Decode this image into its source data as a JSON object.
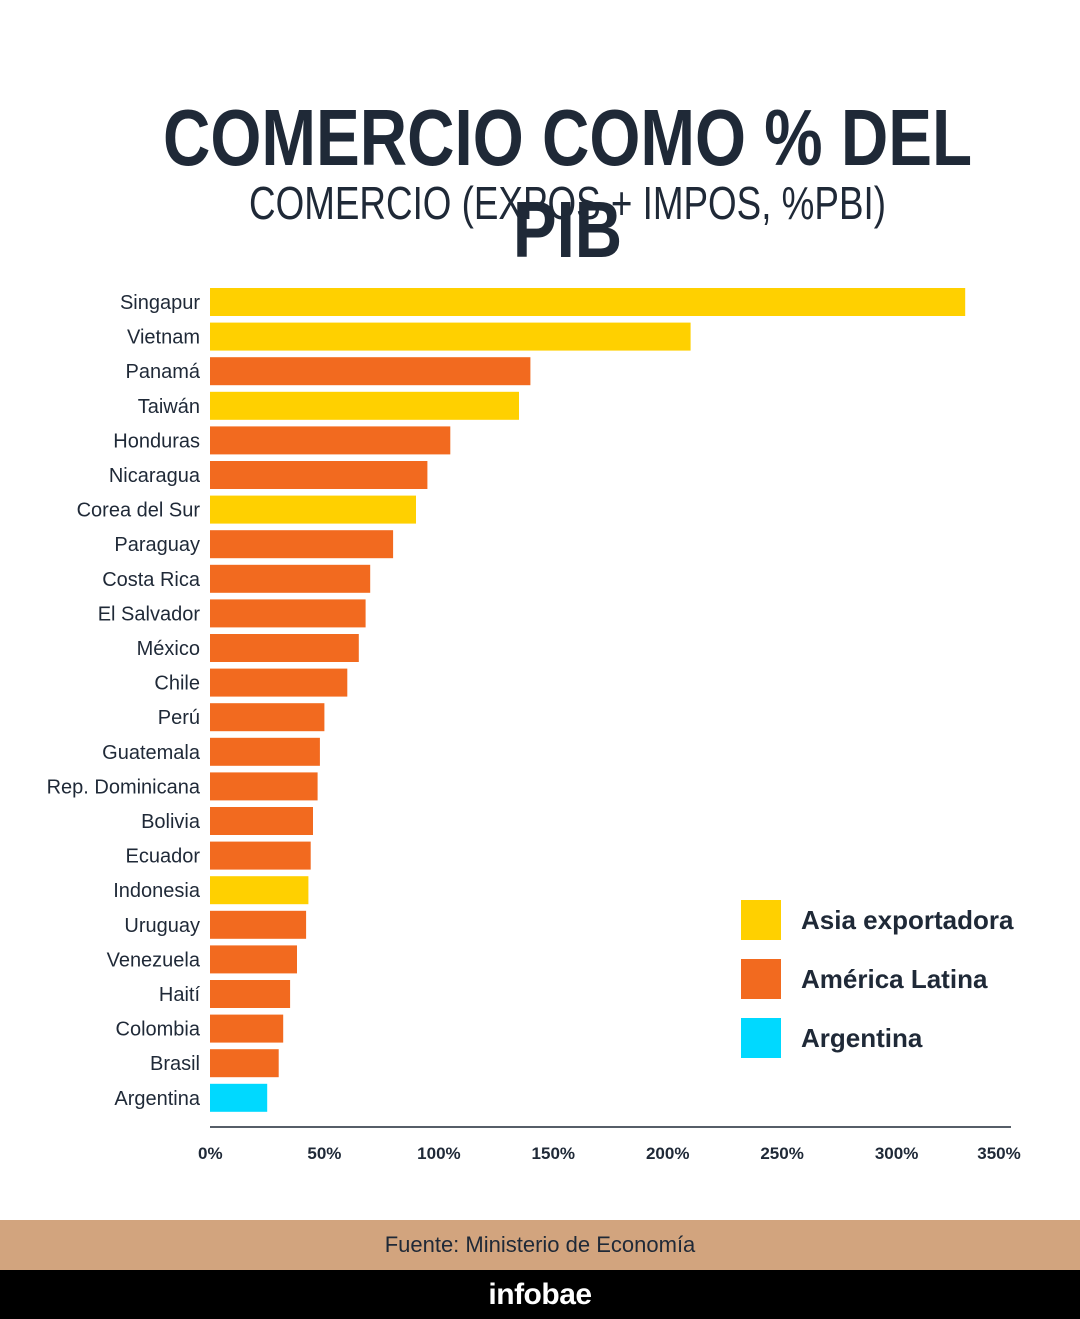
{
  "header": {
    "title": "COMERCIO COMO % DEL PIB",
    "subtitle": "COMERCIO (EXPOS + IMPOS, %PBI)"
  },
  "colors": {
    "asia": "#ffd000",
    "latam": "#f26a1f",
    "argentina": "#00d9ff",
    "axis": "#1f2937",
    "source_bg": "#d2a47e",
    "footer_bg": "#000000"
  },
  "chart_data": {
    "type": "bar",
    "orientation": "horizontal",
    "categories": [
      "Singapur",
      "Vietnam",
      "Panamá",
      "Taiwán",
      "Honduras",
      "Nicaragua",
      "Corea del Sur",
      "Paraguay",
      "Costa Rica",
      "El Salvador",
      "México",
      "Chile",
      "Perú",
      "Guatemala",
      "Rep. Dominicana",
      "Bolivia",
      "Ecuador",
      "Indonesia",
      "Uruguay",
      "Venezuela",
      "Haití",
      "Colombia",
      "Brasil",
      "Argentina"
    ],
    "values": [
      330,
      210,
      140,
      135,
      105,
      95,
      90,
      80,
      70,
      68,
      65,
      60,
      50,
      48,
      47,
      45,
      44,
      43,
      42,
      38,
      35,
      32,
      30,
      25
    ],
    "groups": [
      "asia",
      "asia",
      "latam",
      "asia",
      "latam",
      "latam",
      "asia",
      "latam",
      "latam",
      "latam",
      "latam",
      "latam",
      "latam",
      "latam",
      "latam",
      "latam",
      "latam",
      "asia",
      "latam",
      "latam",
      "latam",
      "latam",
      "latam",
      "argentina"
    ],
    "xlim": [
      0,
      350
    ],
    "xticks": [
      "0%",
      "50%",
      "100%",
      "150%",
      "200%",
      "250%",
      "300%",
      "350%"
    ],
    "legend": [
      {
        "key": "asia",
        "label": "Asia exportadora"
      },
      {
        "key": "latam",
        "label": "América Latina"
      },
      {
        "key": "argentina",
        "label": "Argentina"
      }
    ],
    "legend_position": "bottom-right",
    "grid": false
  },
  "source": "Fuente: Ministerio de Economía",
  "brand": "infobae"
}
